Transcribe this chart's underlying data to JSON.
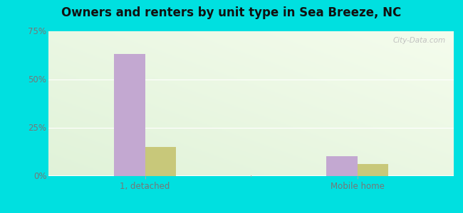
{
  "title": "Owners and renters by unit type in Sea Breeze, NC",
  "categories": [
    "1, detached",
    "Mobile home"
  ],
  "owner_values": [
    63,
    10
  ],
  "renter_values": [
    15,
    6
  ],
  "owner_color": "#c3a8d1",
  "renter_color": "#c8c87a",
  "ylim": [
    0,
    75
  ],
  "yticks": [
    0,
    25,
    50,
    75
  ],
  "yticklabels": [
    "0%",
    "25%",
    "50%",
    "75%"
  ],
  "outer_bg": "#00e0e0",
  "watermark": "City-Data.com",
  "bar_width": 0.32,
  "group_positions": [
    1.0,
    3.2
  ],
  "xlim": [
    0,
    4.2
  ],
  "title_fontsize": 12,
  "tick_fontsize": 8.5
}
